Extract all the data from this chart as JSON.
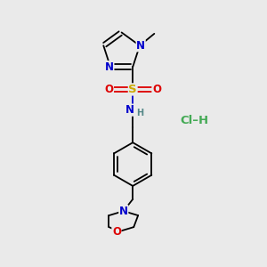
{
  "bg_color": "#eaeaea",
  "bond_color": "#000000",
  "figsize": [
    3.0,
    3.0
  ],
  "dpi": 100,
  "atom_colors": {
    "N": "#0000cc",
    "O": "#dd0000",
    "S": "#ccaa00",
    "Cl_green": "#44aa55",
    "H_gray": "#558888",
    "C_black": "#000000"
  },
  "font_size": 8.5
}
